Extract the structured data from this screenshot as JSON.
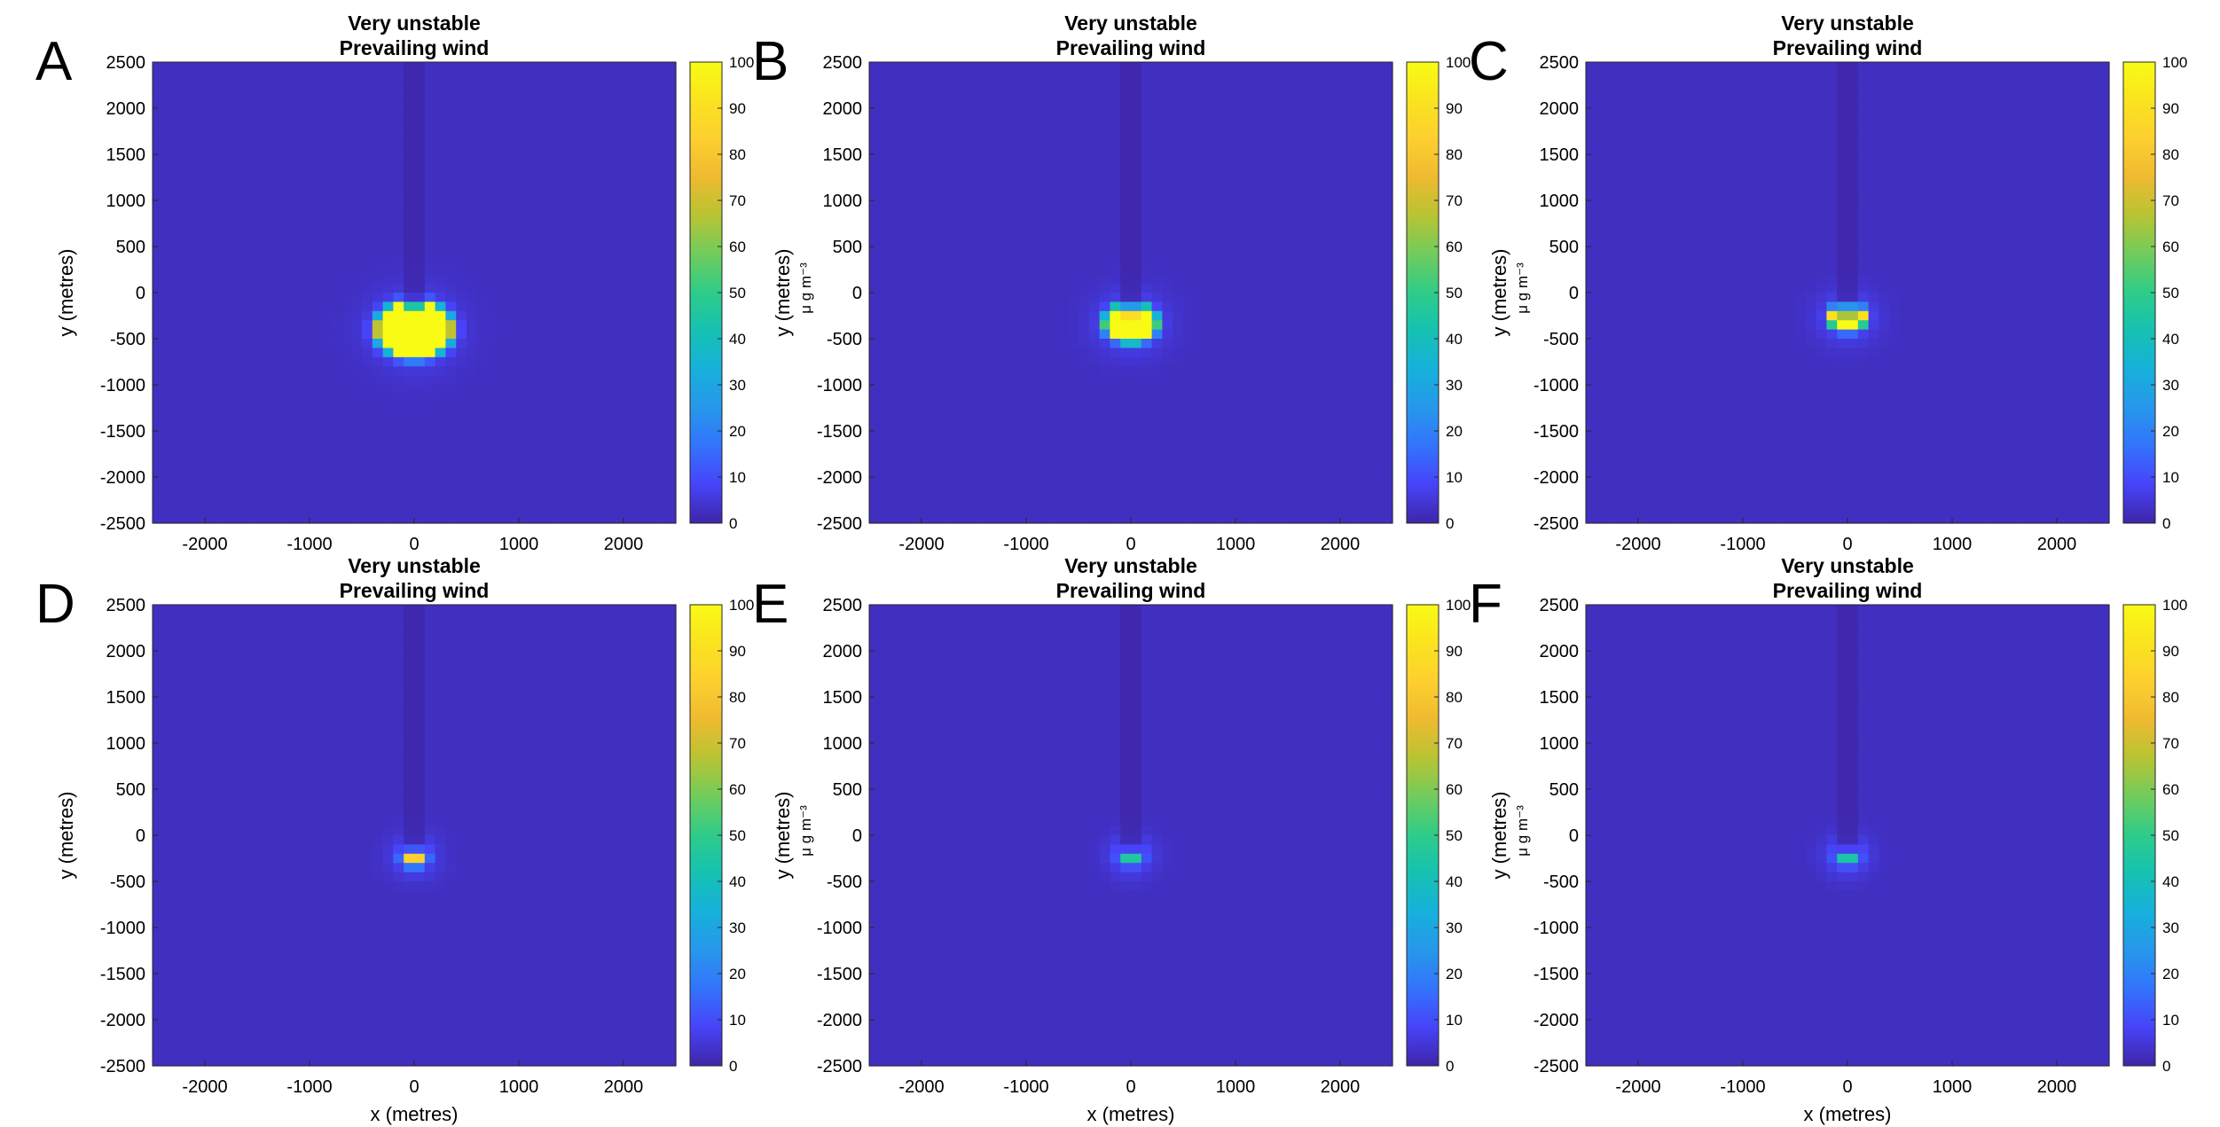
{
  "figure": {
    "letters": [
      "A",
      "B",
      "C",
      "D",
      "E",
      "F"
    ]
  },
  "colormap": [
    "#3e26a8",
    "#4743f8",
    "#3373fc",
    "#2797eb",
    "#17b0dc",
    "#16c1b2",
    "#2ecc89",
    "#70cc5d",
    "#b7c433",
    "#eeba30",
    "#fdcf2f",
    "#fae31f",
    "#f9fb15"
  ],
  "chart_data": [
    {
      "type": "heatmap",
      "letter": "A",
      "title": [
        "Very unstable",
        "Prevailing wind"
      ],
      "xlabel": "",
      "ylabel": "y (metres)",
      "colorbar_label": "μ g m⁻³",
      "xlim": [
        -2500,
        2500
      ],
      "ylim": [
        -2500,
        2500
      ],
      "xticks": [
        "-2000",
        "-1000",
        "0",
        "1000",
        "2000"
      ],
      "yticks": [
        "2500",
        "2000",
        "1500",
        "1000",
        "500",
        "0",
        "-500",
        "-1000",
        "-1500",
        "-2000",
        "-2500"
      ],
      "cticks": [
        "100",
        "90",
        "80",
        "70",
        "60",
        "50",
        "40",
        "30",
        "20",
        "10",
        "0"
      ],
      "clim": [
        0,
        100
      ],
      "plume": {
        "center_x": 0,
        "center_y": -400,
        "peak": 700,
        "radius_x": 260,
        "radius_y": 220,
        "halo": 600,
        "notch_width": 250,
        "notch_depth": 280
      }
    },
    {
      "type": "heatmap",
      "letter": "B",
      "title": [
        "Very unstable",
        "Prevailing wind"
      ],
      "xlabel": "",
      "ylabel": "y (metres)",
      "colorbar_label": "μ g m⁻³",
      "xlim": [
        -2500,
        2500
      ],
      "ylim": [
        -2500,
        2500
      ],
      "xticks": [
        "-2000",
        "-1000",
        "0",
        "1000",
        "2000"
      ],
      "yticks": [
        "2500",
        "2000",
        "1500",
        "1000",
        "500",
        "0",
        "-500",
        "-1000",
        "-1500",
        "-2000",
        "-2500"
      ],
      "cticks": [
        "100",
        "90",
        "80",
        "70",
        "60",
        "50",
        "40",
        "30",
        "20",
        "10",
        "0"
      ],
      "clim": [
        0,
        100
      ],
      "plume": {
        "center_x": 0,
        "center_y": -330,
        "peak": 400,
        "radius_x": 190,
        "radius_y": 160,
        "halo": 480,
        "notch_width": 200,
        "notch_depth": 240
      }
    },
    {
      "type": "heatmap",
      "letter": "C",
      "title": [
        "Very unstable",
        "Prevailing wind"
      ],
      "xlabel": "",
      "ylabel": "y (metres)",
      "colorbar_label": "μ g m⁻³",
      "xlim": [
        -2500,
        2500
      ],
      "ylim": [
        -2500,
        2500
      ],
      "xticks": [
        "-2000",
        "-1000",
        "0",
        "1000",
        "2000"
      ],
      "yticks": [
        "2500",
        "2000",
        "1500",
        "1000",
        "500",
        "0",
        "-500",
        "-1000",
        "-1500",
        "-2000",
        "-2500"
      ],
      "cticks": [
        "100",
        "90",
        "80",
        "70",
        "60",
        "50",
        "40",
        "30",
        "20",
        "10",
        "0"
      ],
      "clim": [
        0,
        100
      ],
      "plume": {
        "center_x": 0,
        "center_y": -270,
        "peak": 260,
        "radius_x": 140,
        "radius_y": 120,
        "halo": 400,
        "notch_width": 180,
        "notch_depth": 200
      }
    },
    {
      "type": "heatmap",
      "letter": "D",
      "title": [
        "Very unstable",
        "Prevailing wind"
      ],
      "xlabel": "x (metres)",
      "ylabel": "y (metres)",
      "colorbar_label": "μ g m⁻³",
      "xlim": [
        -2500,
        2500
      ],
      "ylim": [
        -2500,
        2500
      ],
      "xticks": [
        "-2000",
        "-1000",
        "0",
        "1000",
        "2000"
      ],
      "yticks": [
        "2500",
        "2000",
        "1500",
        "1000",
        "500",
        "0",
        "-500",
        "-1000",
        "-1500",
        "-2000",
        "-2500"
      ],
      "cticks": [
        "100",
        "90",
        "80",
        "70",
        "60",
        "50",
        "40",
        "30",
        "20",
        "10",
        "0"
      ],
      "clim": [
        0,
        100
      ],
      "plume": {
        "center_x": 0,
        "center_y": -230,
        "peak": 80,
        "radius_x": 110,
        "radius_y": 95,
        "halo": 330,
        "notch_width": 160,
        "notch_depth": 170
      }
    },
    {
      "type": "heatmap",
      "letter": "E",
      "title": [
        "Very unstable",
        "Prevailing wind"
      ],
      "xlabel": "x (metres)",
      "ylabel": "y (metres)",
      "colorbar_label": "μ g m⁻³",
      "xlim": [
        -2500,
        2500
      ],
      "ylim": [
        -2500,
        2500
      ],
      "xticks": [
        "-2000",
        "-1000",
        "0",
        "1000",
        "2000"
      ],
      "yticks": [
        "2500",
        "2000",
        "1500",
        "1000",
        "500",
        "0",
        "-500",
        "-1000",
        "-1500",
        "-2000",
        "-2500"
      ],
      "cticks": [
        "100",
        "90",
        "80",
        "70",
        "60",
        "50",
        "40",
        "30",
        "20",
        "10",
        "0"
      ],
      "clim": [
        0,
        100
      ],
      "plume": {
        "center_x": 0,
        "center_y": -220,
        "peak": 40,
        "radius_x": 110,
        "radius_y": 95,
        "halo": 320,
        "notch_width": 150,
        "notch_depth": 160
      }
    },
    {
      "type": "heatmap",
      "letter": "F",
      "title": [
        "Very unstable",
        "Prevailing wind"
      ],
      "xlabel": "x (metres)",
      "ylabel": "y (metres)",
      "colorbar_label": "μ g m⁻³",
      "xlim": [
        -2500,
        2500
      ],
      "ylim": [
        -2500,
        2500
      ],
      "xticks": [
        "-2000",
        "-1000",
        "0",
        "1000",
        "2000"
      ],
      "yticks": [
        "2500",
        "2000",
        "1500",
        "1000",
        "500",
        "0",
        "-500",
        "-1000",
        "-1500",
        "-2000",
        "-2500"
      ],
      "cticks": [
        "100",
        "90",
        "80",
        "70",
        "60",
        "50",
        "40",
        "30",
        "20",
        "10",
        "0"
      ],
      "clim": [
        0,
        100
      ],
      "plume": {
        "center_x": 0,
        "center_y": -220,
        "peak": 38,
        "radius_x": 110,
        "radius_y": 95,
        "halo": 320,
        "notch_width": 150,
        "notch_depth": 160
      }
    }
  ]
}
